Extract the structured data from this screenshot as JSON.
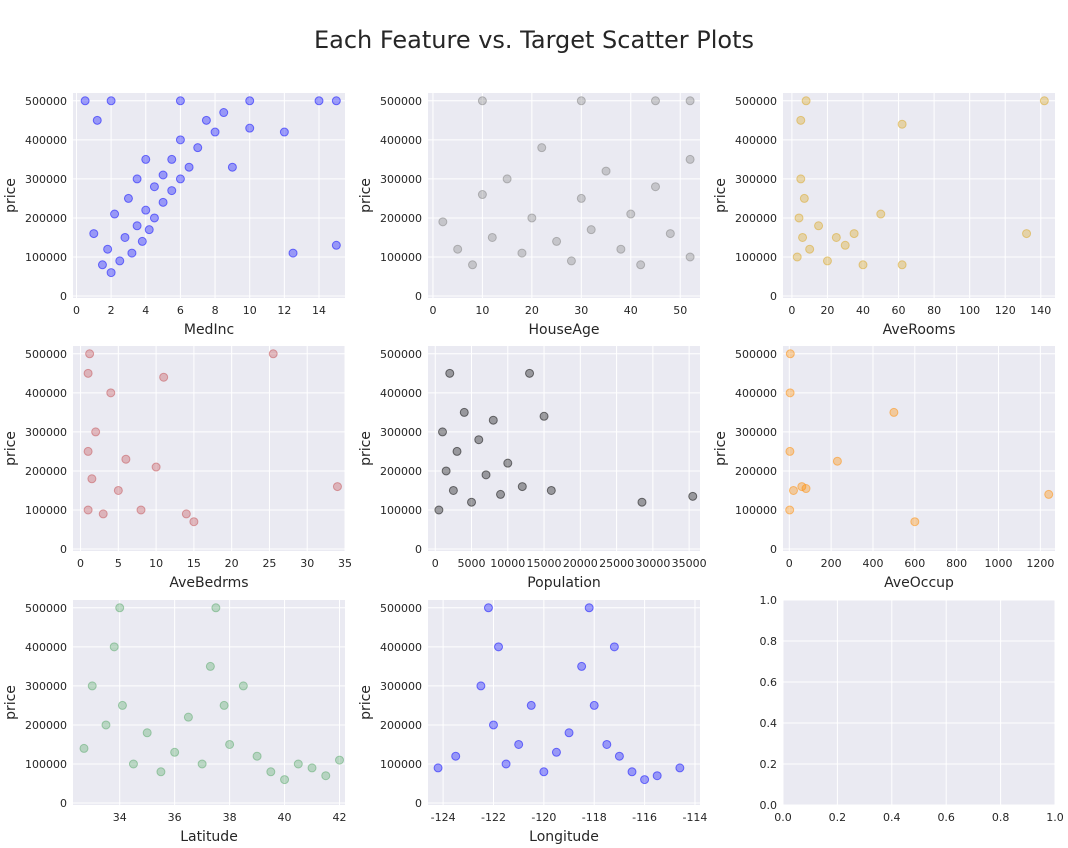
{
  "figure": {
    "title": "Each Feature vs. Target Scatter Plots",
    "background": "#eaeaf2",
    "grid_color": "#ffffff"
  },
  "chart_data": [
    {
      "type": "scatter",
      "xlabel": "MedInc",
      "ylabel": "price",
      "xlim": [
        -0.2,
        15.5
      ],
      "ylim": [
        -5000,
        520000
      ],
      "xticks": [
        0,
        2,
        4,
        6,
        8,
        10,
        12,
        14
      ],
      "yticks": [
        0,
        100000,
        200000,
        300000,
        400000,
        500000
      ],
      "grid": true,
      "color": "#0000ff",
      "points": [
        [
          0.5,
          500000
        ],
        [
          1.0,
          160000
        ],
        [
          1.2,
          450000
        ],
        [
          1.5,
          80000
        ],
        [
          1.8,
          120000
        ],
        [
          2.0,
          60000
        ],
        [
          2.2,
          210000
        ],
        [
          2.5,
          90000
        ],
        [
          2.8,
          150000
        ],
        [
          3.0,
          250000
        ],
        [
          3.2,
          110000
        ],
        [
          3.5,
          300000
        ],
        [
          3.5,
          180000
        ],
        [
          3.8,
          140000
        ],
        [
          4.0,
          350000
        ],
        [
          4.0,
          220000
        ],
        [
          4.2,
          170000
        ],
        [
          4.5,
          280000
        ],
        [
          4.5,
          200000
        ],
        [
          5.0,
          310000
        ],
        [
          5.0,
          240000
        ],
        [
          5.5,
          270000
        ],
        [
          5.5,
          350000
        ],
        [
          6.0,
          300000
        ],
        [
          6.0,
          400000
        ],
        [
          6.5,
          330000
        ],
        [
          7.0,
          380000
        ],
        [
          7.5,
          450000
        ],
        [
          8.0,
          420000
        ],
        [
          8.5,
          470000
        ],
        [
          9.0,
          330000
        ],
        [
          10.0,
          430000
        ],
        [
          12.0,
          420000
        ],
        [
          15.0,
          500000
        ],
        [
          15.0,
          130000
        ],
        [
          12.5,
          110000
        ],
        [
          2.0,
          500000
        ],
        [
          6.0,
          500000
        ],
        [
          10.0,
          500000
        ],
        [
          14.0,
          500000
        ]
      ]
    },
    {
      "type": "scatter",
      "xlabel": "HouseAge",
      "ylabel": "price",
      "xlim": [
        -1,
        54
      ],
      "ylim": [
        -5000,
        520000
      ],
      "xticks": [
        0,
        10,
        20,
        30,
        40,
        50
      ],
      "yticks": [
        0,
        100000,
        200000,
        300000,
        400000,
        500000
      ],
      "grid": true,
      "color": "#808080",
      "points": [
        [
          2,
          190000
        ],
        [
          5,
          120000
        ],
        [
          8,
          80000
        ],
        [
          10,
          260000
        ],
        [
          12,
          150000
        ],
        [
          15,
          300000
        ],
        [
          18,
          110000
        ],
        [
          20,
          200000
        ],
        [
          22,
          380000
        ],
        [
          25,
          140000
        ],
        [
          28,
          90000
        ],
        [
          30,
          250000
        ],
        [
          32,
          170000
        ],
        [
          35,
          320000
        ],
        [
          38,
          120000
        ],
        [
          40,
          210000
        ],
        [
          42,
          80000
        ],
        [
          45,
          280000
        ],
        [
          48,
          160000
        ],
        [
          52,
          500000
        ],
        [
          52,
          350000
        ],
        [
          52,
          100000
        ],
        [
          10,
          500000
        ],
        [
          30,
          500000
        ],
        [
          45,
          500000
        ]
      ]
    },
    {
      "type": "scatter",
      "xlabel": "AveRooms",
      "ylabel": "price",
      "xlim": [
        -5,
        148
      ],
      "ylim": [
        -5000,
        520000
      ],
      "xticks": [
        0,
        20,
        40,
        60,
        80,
        100,
        120,
        140
      ],
      "yticks": [
        0,
        100000,
        200000,
        300000,
        400000,
        500000
      ],
      "grid": true,
      "color": "#daa520",
      "points": [
        [
          3,
          100000
        ],
        [
          4,
          200000
        ],
        [
          5,
          300000
        ],
        [
          5,
          450000
        ],
        [
          6,
          150000
        ],
        [
          7,
          250000
        ],
        [
          8,
          500000
        ],
        [
          10,
          120000
        ],
        [
          15,
          180000
        ],
        [
          20,
          90000
        ],
        [
          25,
          150000
        ],
        [
          30,
          130000
        ],
        [
          35,
          160000
        ],
        [
          40,
          80000
        ],
        [
          50,
          210000
        ],
        [
          62,
          440000
        ],
        [
          62,
          80000
        ],
        [
          132,
          160000
        ],
        [
          142,
          500000
        ]
      ]
    },
    {
      "type": "scatter",
      "xlabel": "AveBedrms",
      "ylabel": "price",
      "xlim": [
        -1,
        35
      ],
      "ylim": [
        -5000,
        520000
      ],
      "xticks": [
        0,
        5,
        10,
        15,
        20,
        25,
        30,
        35
      ],
      "yticks": [
        0,
        100000,
        200000,
        300000,
        400000,
        500000
      ],
      "grid": true,
      "color": "#c44e52",
      "points": [
        [
          1,
          100000
        ],
        [
          1,
          250000
        ],
        [
          1,
          450000
        ],
        [
          1.2,
          500000
        ],
        [
          1.5,
          180000
        ],
        [
          2,
          300000
        ],
        [
          3,
          90000
        ],
        [
          4,
          400000
        ],
        [
          5,
          150000
        ],
        [
          6,
          230000
        ],
        [
          8,
          100000
        ],
        [
          10,
          210000
        ],
        [
          11,
          440000
        ],
        [
          14,
          90000
        ],
        [
          15,
          70000
        ],
        [
          25.5,
          500000
        ],
        [
          34,
          160000
        ]
      ]
    },
    {
      "type": "scatter",
      "xlabel": "Population",
      "ylabel": "price",
      "xlim": [
        -1000,
        36500
      ],
      "ylim": [
        -5000,
        520000
      ],
      "xticks": [
        0,
        5000,
        10000,
        15000,
        20000,
        25000,
        30000,
        35000
      ],
      "yticks": [
        0,
        100000,
        200000,
        300000,
        400000,
        500000
      ],
      "grid": true,
      "color": "#000000",
      "points": [
        [
          500,
          100000
        ],
        [
          1000,
          300000
        ],
        [
          1500,
          200000
        ],
        [
          2000,
          450000
        ],
        [
          2500,
          150000
        ],
        [
          3000,
          250000
        ],
        [
          4000,
          350000
        ],
        [
          5000,
          120000
        ],
        [
          6000,
          280000
        ],
        [
          7000,
          190000
        ],
        [
          8000,
          330000
        ],
        [
          9000,
          140000
        ],
        [
          10000,
          220000
        ],
        [
          12000,
          160000
        ],
        [
          13000,
          450000
        ],
        [
          15000,
          340000
        ],
        [
          16000,
          150000
        ],
        [
          28500,
          120000
        ],
        [
          35500,
          135000
        ]
      ]
    },
    {
      "type": "scatter",
      "xlabel": "AveOccup",
      "ylabel": "price",
      "xlim": [
        -30,
        1270
      ],
      "ylim": [
        -5000,
        520000
      ],
      "xticks": [
        0,
        200,
        400,
        600,
        800,
        1000,
        1200
      ],
      "yticks": [
        0,
        100000,
        200000,
        300000,
        400000,
        500000
      ],
      "grid": true,
      "color": "#ff8c00",
      "points": [
        [
          2,
          100000
        ],
        [
          3,
          250000
        ],
        [
          4,
          400000
        ],
        [
          5,
          500000
        ],
        [
          20,
          150000
        ],
        [
          60,
          160000
        ],
        [
          80,
          155000
        ],
        [
          230,
          225000
        ],
        [
          500,
          350000
        ],
        [
          600,
          70000
        ],
        [
          1240,
          140000
        ]
      ]
    },
    {
      "type": "scatter",
      "xlabel": "Latitude",
      "ylabel": "price",
      "xlim": [
        32.3,
        42.2
      ],
      "ylim": [
        -5000,
        520000
      ],
      "xticks": [
        34,
        36,
        38,
        40,
        42
      ],
      "yticks": [
        0,
        100000,
        200000,
        300000,
        400000,
        500000
      ],
      "grid": true,
      "color": "#55a868",
      "points": [
        [
          32.7,
          140000
        ],
        [
          33.0,
          300000
        ],
        [
          33.5,
          200000
        ],
        [
          33.8,
          400000
        ],
        [
          34.0,
          500000
        ],
        [
          34.1,
          250000
        ],
        [
          34.5,
          100000
        ],
        [
          35.0,
          180000
        ],
        [
          35.5,
          80000
        ],
        [
          36.0,
          130000
        ],
        [
          36.5,
          220000
        ],
        [
          37.0,
          100000
        ],
        [
          37.3,
          350000
        ],
        [
          37.5,
          500000
        ],
        [
          37.8,
          250000
        ],
        [
          38.0,
          150000
        ],
        [
          38.5,
          300000
        ],
        [
          39.0,
          120000
        ],
        [
          39.5,
          80000
        ],
        [
          40.0,
          60000
        ],
        [
          40.5,
          100000
        ],
        [
          41.0,
          90000
        ],
        [
          41.5,
          70000
        ],
        [
          42.0,
          110000
        ]
      ]
    },
    {
      "type": "scatter",
      "xlabel": "Longitude",
      "ylabel": "price",
      "xlim": [
        -124.6,
        -113.8
      ],
      "ylim": [
        -5000,
        520000
      ],
      "xticks": [
        -124,
        -122,
        -120,
        -118,
        -116,
        -114
      ],
      "yticks": [
        0,
        100000,
        200000,
        300000,
        400000,
        500000
      ],
      "grid": true,
      "color": "#0000ff",
      "points": [
        [
          -124.2,
          90000
        ],
        [
          -123.5,
          120000
        ],
        [
          -122.5,
          300000
        ],
        [
          -122.2,
          500000
        ],
        [
          -122.0,
          200000
        ],
        [
          -121.8,
          400000
        ],
        [
          -121.5,
          100000
        ],
        [
          -121.0,
          150000
        ],
        [
          -120.5,
          250000
        ],
        [
          -120.0,
          80000
        ],
        [
          -119.5,
          130000
        ],
        [
          -119.0,
          180000
        ],
        [
          -118.5,
          350000
        ],
        [
          -118.2,
          500000
        ],
        [
          -118.0,
          250000
        ],
        [
          -117.5,
          150000
        ],
        [
          -117.2,
          400000
        ],
        [
          -117.0,
          120000
        ],
        [
          -116.5,
          80000
        ],
        [
          -116.0,
          60000
        ],
        [
          -115.5,
          70000
        ],
        [
          -114.6,
          90000
        ]
      ]
    },
    {
      "type": "scatter",
      "xlabel": "",
      "ylabel": "",
      "xlim": [
        0,
        1
      ],
      "ylim": [
        0,
        1
      ],
      "xticks": [
        0.0,
        0.2,
        0.4,
        0.6,
        0.8,
        1.0
      ],
      "yticks": [
        0.0,
        0.2,
        0.4,
        0.6,
        0.8,
        1.0
      ],
      "xtick_labels": [
        "0.0",
        "0.2",
        "0.4",
        "0.6",
        "0.8",
        "1.0"
      ],
      "ytick_labels": [
        "0.0",
        "0.2",
        "0.4",
        "0.6",
        "0.8",
        "1.0"
      ],
      "grid": true,
      "color": "#0000ff",
      "points": []
    }
  ]
}
